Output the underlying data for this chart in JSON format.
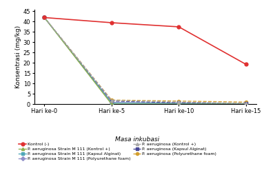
{
  "x_labels": [
    "Hari ke-0",
    "Hari ke-5",
    "Hari ke-10",
    "Hari ke-15"
  ],
  "x_values": [
    0,
    5,
    10,
    15
  ],
  "series": [
    {
      "label": "Kontrol (-)",
      "values": [
        42.0,
        39.5,
        37.5,
        19.3
      ],
      "color": "#e03030",
      "marker": "o",
      "linestyle": "-",
      "linewidth": 1.2,
      "markersize": 3.5,
      "zorder": 5
    },
    {
      "label": "P. aeruginosa Strain M 111 (Kontrol +)",
      "values": [
        42.0,
        0.0,
        0.0,
        0.0
      ],
      "color": "#90b050",
      "marker": "^",
      "linestyle": "-",
      "linewidth": 1.0,
      "markersize": 3,
      "zorder": 4
    },
    {
      "label": "P. aeruginosa Strain M 111 (Kapsul Alginat)",
      "values": [
        42.0,
        0.5,
        0.3,
        0.2
      ],
      "color": "#50a8b8",
      "marker": "s",
      "linestyle": "-",
      "linewidth": 1.0,
      "markersize": 3,
      "zorder": 3
    },
    {
      "label": "P. aeruginosa Strain M 111 (Polyurethane foam)",
      "values": [
        42.0,
        0.8,
        0.5,
        0.15
      ],
      "color": "#9090c8",
      "marker": "D",
      "linestyle": "-",
      "linewidth": 1.0,
      "markersize": 3,
      "zorder": 2
    },
    {
      "label": "P. aeruginosa (Kontrol +)",
      "values": [
        42.0,
        1.8,
        1.0,
        0.4
      ],
      "color": "#a8a8a8",
      "marker": "^",
      "linestyle": "--",
      "linewidth": 1.0,
      "markersize": 3,
      "zorder": 4
    },
    {
      "label": "P. aeruginosa (Kapsul Alginat)",
      "values": [
        42.0,
        1.5,
        0.7,
        0.3
      ],
      "color": "#484898",
      "marker": "s",
      "linestyle": "--",
      "linewidth": 1.0,
      "markersize": 3,
      "zorder": 3
    },
    {
      "label": "P. aeruginosa (Polyurethane foam)",
      "values": [
        42.0,
        2.0,
        1.5,
        1.0
      ],
      "color": "#d4a030",
      "marker": "o",
      "linestyle": "--",
      "linewidth": 1.0,
      "markersize": 3,
      "zorder": 2
    }
  ],
  "ylabel": "Konsentrasi (mg/kg)",
  "xlabel": "Masa inkubasi",
  "ylim": [
    0,
    46
  ],
  "yticks": [
    0,
    5,
    10,
    15,
    20,
    25,
    30,
    35,
    40,
    45
  ],
  "background_color": "#ffffff",
  "legend_fontsize": 4.5,
  "axis_label_fontsize": 6.5,
  "tick_fontsize": 6
}
